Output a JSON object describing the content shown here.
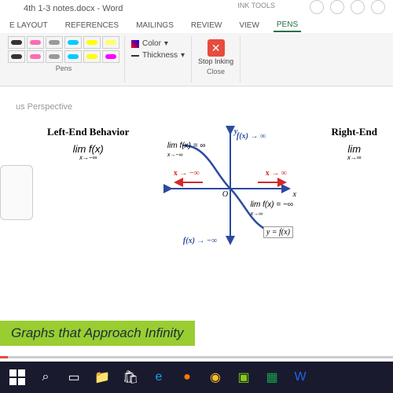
{
  "titlebar": {
    "title": "4th 1-3 notes.docx - Word",
    "ink_tools": "INK TOOLS"
  },
  "tabs": {
    "layout": "E LAYOUT",
    "references": "REFERENCES",
    "mailings": "MAILINGS",
    "review": "REVIEW",
    "view": "VIEW",
    "pens": "PENS"
  },
  "ribbon": {
    "pens_label": "Pens",
    "pen_colors_top": [
      "#333333",
      "#ff69b4",
      "#999999",
      "#00ccff",
      "#ffff00",
      "#ffff66"
    ],
    "pen_colors_bottom": [
      "#333333",
      "#ff69b4",
      "#999999",
      "#00ccff",
      "#ffff00",
      "#ff00ff"
    ],
    "color_label": "Color",
    "thickness_label": "Thickness",
    "stop_inking": "Stop Inking",
    "close_label": "Close"
  },
  "doc": {
    "perspective": "us Perspective",
    "left_title": "Left-End Behavior",
    "right_title": "Right-End",
    "left_limit": "lim  f(x)",
    "left_sub": "x→−∞",
    "right_limit": "lim",
    "right_sub": "x→∞",
    "graph": {
      "lim_top": "lim f(x) = ∞",
      "lim_top_sub": "x→−∞",
      "lim_bot": "lim f(x) = −∞",
      "lim_bot_sub": "x→∞",
      "fx_top": "f(x) → ∞",
      "fx_bot": "f(x) → −∞",
      "x_neg": "x → −∞",
      "x_pos": "x → ∞",
      "y_label": "y",
      "x_label": "x",
      "origin": "O",
      "curve_label": "y = f(x)",
      "axis_color": "#2b4aa0",
      "curve_color": "#2b4aa0"
    },
    "banner": "Graphs that Approach Infinity"
  },
  "taskbar": {
    "apps": [
      "start",
      "search",
      "task",
      "files",
      "store",
      "edge",
      "firefox",
      "chrome",
      "camtasia",
      "excel",
      "word"
    ],
    "colors": {
      "edge": "#0ea5e9",
      "firefox": "#ff7700",
      "chrome": "#fbbf24",
      "camtasia": "#84cc16",
      "excel": "#16a34a",
      "word": "#2563eb"
    }
  }
}
